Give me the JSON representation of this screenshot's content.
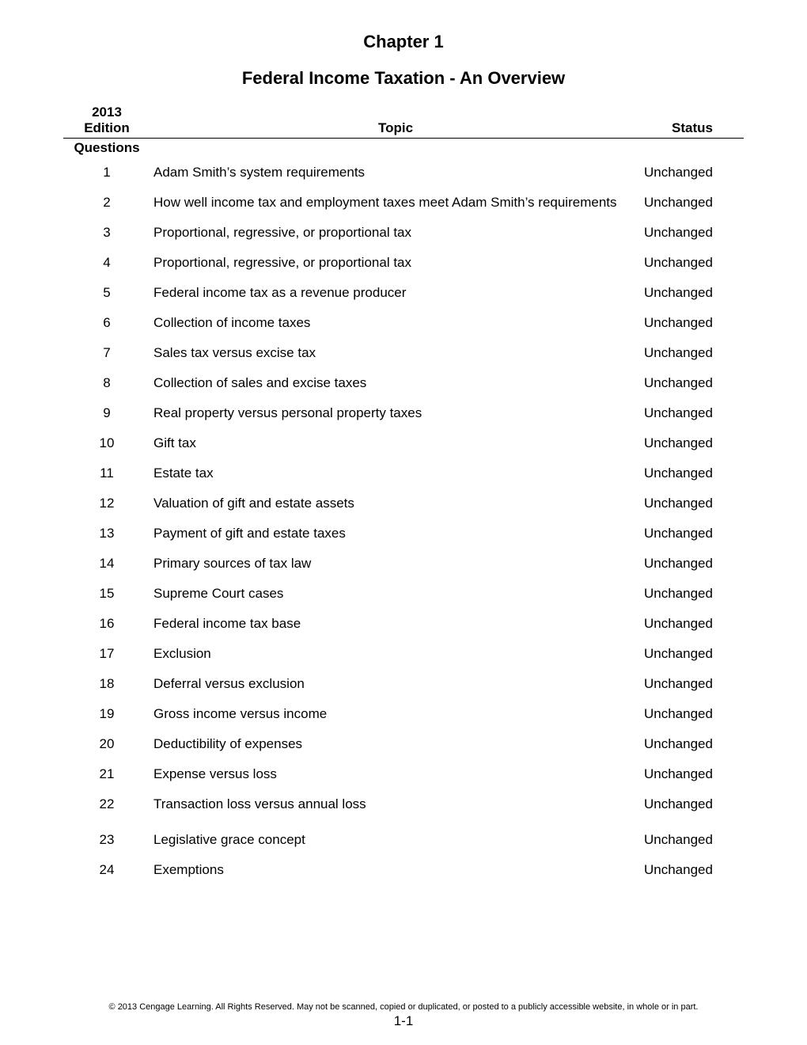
{
  "chapter_title": "Chapter 1",
  "subtitle": "Federal Income Taxation  -  An Overview",
  "columns": {
    "edition": "2013 Edition",
    "topic": "Topic",
    "status": "Status"
  },
  "section_label": "Questions",
  "rows": [
    {
      "n": "1",
      "topic": "Adam Smith’s system requirements",
      "status": "Unchanged"
    },
    {
      "n": "2",
      "topic": "How well income tax and employment taxes meet Adam Smith’s requirements",
      "status": "Unchanged"
    },
    {
      "n": "3",
      "topic": "Proportional, regressive, or proportional tax",
      "status": "Unchanged"
    },
    {
      "n": "4",
      "topic": "Proportional, regressive, or proportional tax",
      "status": "Unchanged"
    },
    {
      "n": "5",
      "topic": "Federal income tax as a revenue producer",
      "status": "Unchanged"
    },
    {
      "n": "6",
      "topic": "Collection of income taxes",
      "status": "Unchanged"
    },
    {
      "n": "7",
      "topic": "Sales tax versus excise tax",
      "status": "Unchanged"
    },
    {
      "n": "8",
      "topic": "Collection of sales and excise taxes",
      "status": "Unchanged"
    },
    {
      "n": "9",
      "topic": "Real property versus personal property taxes",
      "status": "Unchanged"
    },
    {
      "n": "10",
      "topic": "Gift tax",
      "status": "Unchanged"
    },
    {
      "n": "11",
      "topic": "Estate tax",
      "status": "Unchanged"
    },
    {
      "n": "12",
      "topic": "Valuation of gift and estate assets",
      "status": "Unchanged"
    },
    {
      "n": "13",
      "topic": "Payment of gift and estate taxes",
      "status": "Unchanged"
    },
    {
      "n": "14",
      "topic": "Primary sources of tax law",
      "status": "Unchanged"
    },
    {
      "n": "15",
      "topic": "Supreme Court cases",
      "status": "Unchanged"
    },
    {
      "n": "16",
      "topic": "Federal income tax base",
      "status": "Unchanged"
    },
    {
      "n": "17",
      "topic": "Exclusion",
      "status": "Unchanged"
    },
    {
      "n": "18",
      "topic": "Deferral versus exclusion",
      "status": "Unchanged"
    },
    {
      "n": "19",
      "topic": "Gross income versus income",
      "status": "Unchanged"
    },
    {
      "n": "20",
      "topic": "Deductibility of expenses",
      "status": "Unchanged"
    },
    {
      "n": "21",
      "topic": "Expense versus loss",
      "status": "Unchanged"
    },
    {
      "n": "22",
      "topic": "Transaction loss versus annual loss",
      "status": "Unchanged"
    },
    {
      "n": "23",
      "topic": "Legislative grace concept",
      "status": "Unchanged"
    },
    {
      "n": "24",
      "topic": "Exemptions",
      "status": "Unchanged"
    }
  ],
  "footer": {
    "copyright": "© 2013 Cengage Learning. All Rights Reserved. May not be scanned, copied or duplicated, or posted to a publicly accessible website, in whole or in part.",
    "page_number": "1-1"
  }
}
